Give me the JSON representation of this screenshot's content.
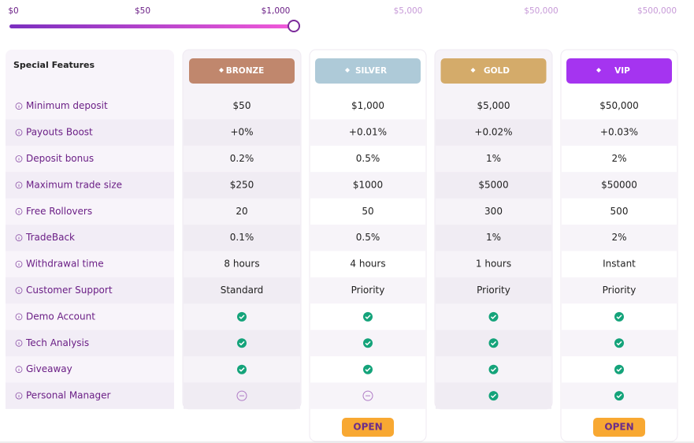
{
  "slider": {
    "labels": [
      "$0",
      "$50",
      "$1,000",
      "$5,000",
      "$50,000",
      "$500,000"
    ]
  },
  "features": {
    "title": "Special Features",
    "rows": [
      "Minimum deposit",
      "Payouts Boost",
      "Deposit bonus",
      "Maximum trade size",
      "Free Rollovers",
      "TradeBack",
      "Withdrawal time",
      "Customer Support",
      "Demo Account",
      "Tech Analysis",
      "Giveaway",
      "Personal Manager"
    ]
  },
  "tiers": [
    {
      "name": "BRONZE",
      "color": "#c0876d",
      "values": [
        "$50",
        "+0%",
        "0.2%",
        "$250",
        "20",
        "0.1%",
        "8 hours",
        "Standard"
      ],
      "checks": [
        true,
        true,
        true,
        false
      ]
    },
    {
      "name": "SILVER",
      "color": "#aecad8",
      "values": [
        "$1,000",
        "+0.01%",
        "0.5%",
        "$1000",
        "50",
        "0.5%",
        "4 hours",
        "Priority"
      ],
      "checks": [
        true,
        true,
        true,
        false
      ],
      "button": "OPEN"
    },
    {
      "name": "GOLD",
      "color": "#d4ab6a",
      "values": [
        "$5,000",
        "+0.02%",
        "1%",
        "$5000",
        "300",
        "1%",
        "1 hours",
        "Priority"
      ],
      "checks": [
        true,
        true,
        true,
        true
      ]
    },
    {
      "name": "VIP",
      "color": "#a534f0",
      "values": [
        "$50,000",
        "+0.03%",
        "2%",
        "$50000",
        "500",
        "2%",
        "Instant",
        "Priority"
      ],
      "checks": [
        true,
        true,
        true,
        true
      ],
      "button": "OPEN"
    }
  ]
}
